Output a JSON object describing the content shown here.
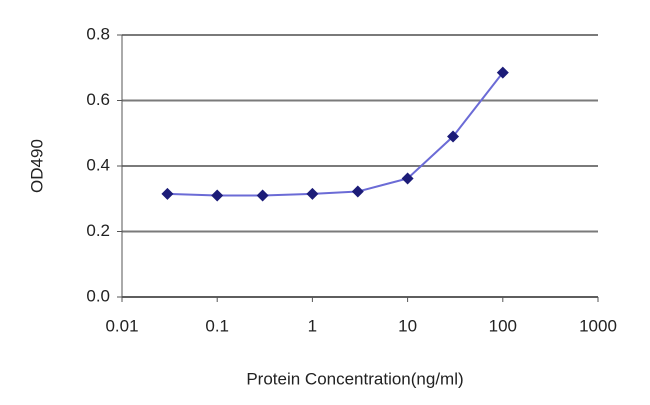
{
  "chart_data": {
    "type": "line",
    "xlabel": "Protein Concentration(ng/ml)",
    "ylabel": "OD490",
    "x": [
      0.03,
      0.1,
      0.3,
      1,
      3,
      10,
      30,
      100
    ],
    "series": [
      {
        "line_color": "#6b6bd6",
        "color": "#1c1c78",
        "values": [
          0.315,
          0.31,
          0.31,
          0.315,
          0.322,
          0.362,
          0.49,
          0.685
        ]
      }
    ],
    "xscale": "log",
    "xlim": [
      0.01,
      1000
    ],
    "xticks": [
      0.01,
      0.1,
      1,
      10,
      100,
      1000
    ],
    "ylim": [
      0,
      0.8
    ],
    "yticks": [
      {
        "value": 0,
        "label": "0.0"
      },
      0.2,
      0.4,
      0.6,
      0.8
    ],
    "grid": true
  }
}
